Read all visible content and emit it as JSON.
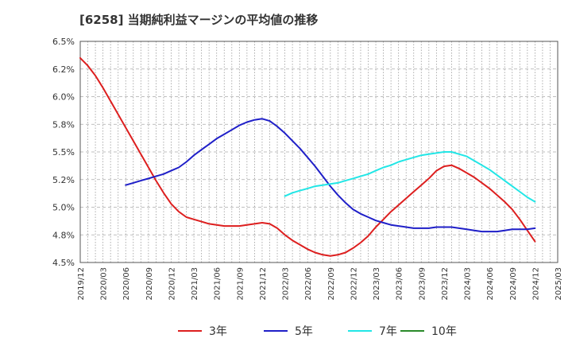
{
  "header": {
    "title": "[6258]  当期純利益マージンの平均値の推移"
  },
  "chart_data": {
    "type": "line",
    "title": "[6258]  当期純利益マージンの平均値の推移",
    "xlabel": "",
    "ylabel": "",
    "ylim": [
      4.5,
      6.5
    ],
    "y_ticks": [
      "6.5%",
      "6.2%",
      "6.0%",
      "5.8%",
      "5.5%",
      "5.2%",
      "5.0%",
      "4.8%",
      "4.5%"
    ],
    "y_tick_values": [
      6.5,
      6.25,
      6.0,
      5.75,
      5.5,
      5.25,
      5.0,
      4.75,
      4.5
    ],
    "x_ticks": [
      "2019/12",
      "2020/03",
      "2020/06",
      "2020/09",
      "2020/12",
      "2021/03",
      "2021/06",
      "2021/09",
      "2021/12",
      "2022/03",
      "2022/06",
      "2022/09",
      "2022/12",
      "2023/03",
      "2023/06",
      "2023/09",
      "2023/12",
      "2024/03",
      "2024/06",
      "2024/09",
      "2024/12",
      "2025/03"
    ],
    "grid": true,
    "legend_position": "bottom",
    "series": [
      {
        "name": "3年",
        "color": "#dd1f1f",
        "values": [
          [
            "2019/12",
            6.35
          ],
          [
            "2020/01",
            6.28
          ],
          [
            "2020/02",
            6.19
          ],
          [
            "2020/03",
            6.08
          ],
          [
            "2020/04",
            5.96
          ],
          [
            "2020/05",
            5.84
          ],
          [
            "2020/06",
            5.72
          ],
          [
            "2020/07",
            5.6
          ],
          [
            "2020/08",
            5.48
          ],
          [
            "2020/09",
            5.36
          ],
          [
            "2020/10",
            5.24
          ],
          [
            "2020/11",
            5.13
          ],
          [
            "2020/12",
            5.03
          ],
          [
            "2021/01",
            4.96
          ],
          [
            "2021/02",
            4.91
          ],
          [
            "2021/03",
            4.89
          ],
          [
            "2021/04",
            4.87
          ],
          [
            "2021/05",
            4.85
          ],
          [
            "2021/06",
            4.84
          ],
          [
            "2021/07",
            4.83
          ],
          [
            "2021/08",
            4.83
          ],
          [
            "2021/09",
            4.83
          ],
          [
            "2021/10",
            4.84
          ],
          [
            "2021/11",
            4.85
          ],
          [
            "2021/12",
            4.86
          ],
          [
            "2022/01",
            4.85
          ],
          [
            "2022/02",
            4.81
          ],
          [
            "2022/03",
            4.75
          ],
          [
            "2022/04",
            4.7
          ],
          [
            "2022/05",
            4.66
          ],
          [
            "2022/06",
            4.62
          ],
          [
            "2022/07",
            4.59
          ],
          [
            "2022/08",
            4.57
          ],
          [
            "2022/09",
            4.56
          ],
          [
            "2022/10",
            4.57
          ],
          [
            "2022/11",
            4.59
          ],
          [
            "2022/12",
            4.63
          ],
          [
            "2023/01",
            4.68
          ],
          [
            "2023/02",
            4.74
          ],
          [
            "2023/03",
            4.82
          ],
          [
            "2023/04",
            4.89
          ],
          [
            "2023/05",
            4.96
          ],
          [
            "2023/06",
            5.02
          ],
          [
            "2023/07",
            5.08
          ],
          [
            "2023/08",
            5.14
          ],
          [
            "2023/09",
            5.2
          ],
          [
            "2023/10",
            5.26
          ],
          [
            "2023/11",
            5.33
          ],
          [
            "2023/12",
            5.37
          ],
          [
            "2024/01",
            5.38
          ],
          [
            "2024/02",
            5.35
          ],
          [
            "2024/03",
            5.31
          ],
          [
            "2024/04",
            5.27
          ],
          [
            "2024/05",
            5.22
          ],
          [
            "2024/06",
            5.17
          ],
          [
            "2024/07",
            5.11
          ],
          [
            "2024/08",
            5.05
          ],
          [
            "2024/09",
            4.98
          ],
          [
            "2024/10",
            4.89
          ],
          [
            "2024/11",
            4.79
          ],
          [
            "2024/12",
            4.69
          ]
        ]
      },
      {
        "name": "5年",
        "color": "#1f1fc8",
        "values": [
          [
            "2020/06",
            5.2
          ],
          [
            "2020/07",
            5.22
          ],
          [
            "2020/08",
            5.24
          ],
          [
            "2020/09",
            5.26
          ],
          [
            "2020/10",
            5.28
          ],
          [
            "2020/11",
            5.3
          ],
          [
            "2020/12",
            5.33
          ],
          [
            "2021/01",
            5.36
          ],
          [
            "2021/02",
            5.41
          ],
          [
            "2021/03",
            5.47
          ],
          [
            "2021/04",
            5.52
          ],
          [
            "2021/05",
            5.57
          ],
          [
            "2021/06",
            5.62
          ],
          [
            "2021/07",
            5.66
          ],
          [
            "2021/08",
            5.7
          ],
          [
            "2021/09",
            5.74
          ],
          [
            "2021/10",
            5.77
          ],
          [
            "2021/11",
            5.79
          ],
          [
            "2021/12",
            5.8
          ],
          [
            "2022/01",
            5.78
          ],
          [
            "2022/02",
            5.73
          ],
          [
            "2022/03",
            5.67
          ],
          [
            "2022/04",
            5.6
          ],
          [
            "2022/05",
            5.53
          ],
          [
            "2022/06",
            5.45
          ],
          [
            "2022/07",
            5.37
          ],
          [
            "2022/08",
            5.28
          ],
          [
            "2022/09",
            5.19
          ],
          [
            "2022/10",
            5.11
          ],
          [
            "2022/11",
            5.04
          ],
          [
            "2022/12",
            4.98
          ],
          [
            "2023/01",
            4.94
          ],
          [
            "2023/02",
            4.91
          ],
          [
            "2023/03",
            4.88
          ],
          [
            "2023/04",
            4.86
          ],
          [
            "2023/05",
            4.84
          ],
          [
            "2023/06",
            4.83
          ],
          [
            "2023/07",
            4.82
          ],
          [
            "2023/08",
            4.81
          ],
          [
            "2023/09",
            4.81
          ],
          [
            "2023/10",
            4.81
          ],
          [
            "2023/11",
            4.82
          ],
          [
            "2023/12",
            4.82
          ],
          [
            "2024/01",
            4.82
          ],
          [
            "2024/02",
            4.81
          ],
          [
            "2024/03",
            4.8
          ],
          [
            "2024/04",
            4.79
          ],
          [
            "2024/05",
            4.78
          ],
          [
            "2024/06",
            4.78
          ],
          [
            "2024/07",
            4.78
          ],
          [
            "2024/08",
            4.79
          ],
          [
            "2024/09",
            4.8
          ],
          [
            "2024/10",
            4.8
          ],
          [
            "2024/11",
            4.8
          ],
          [
            "2024/12",
            4.81
          ]
        ]
      },
      {
        "name": "7年",
        "color": "#22e6e6",
        "values": [
          [
            "2022/03",
            5.1
          ],
          [
            "2022/04",
            5.13
          ],
          [
            "2022/05",
            5.15
          ],
          [
            "2022/06",
            5.17
          ],
          [
            "2022/07",
            5.19
          ],
          [
            "2022/08",
            5.2
          ],
          [
            "2022/09",
            5.21
          ],
          [
            "2022/10",
            5.22
          ],
          [
            "2022/11",
            5.24
          ],
          [
            "2022/12",
            5.26
          ],
          [
            "2023/01",
            5.28
          ],
          [
            "2023/02",
            5.3
          ],
          [
            "2023/03",
            5.33
          ],
          [
            "2023/04",
            5.36
          ],
          [
            "2023/05",
            5.38
          ],
          [
            "2023/06",
            5.41
          ],
          [
            "2023/07",
            5.43
          ],
          [
            "2023/08",
            5.45
          ],
          [
            "2023/09",
            5.47
          ],
          [
            "2023/10",
            5.48
          ],
          [
            "2023/11",
            5.49
          ],
          [
            "2023/12",
            5.5
          ],
          [
            "2024/01",
            5.5
          ],
          [
            "2024/02",
            5.48
          ],
          [
            "2024/03",
            5.46
          ],
          [
            "2024/04",
            5.42
          ],
          [
            "2024/05",
            5.38
          ],
          [
            "2024/06",
            5.34
          ],
          [
            "2024/07",
            5.29
          ],
          [
            "2024/08",
            5.24
          ],
          [
            "2024/09",
            5.19
          ],
          [
            "2024/10",
            5.14
          ],
          [
            "2024/11",
            5.09
          ],
          [
            "2024/12",
            5.05
          ]
        ]
      },
      {
        "name": "10年",
        "color": "#2a8a2a",
        "values": []
      }
    ]
  }
}
